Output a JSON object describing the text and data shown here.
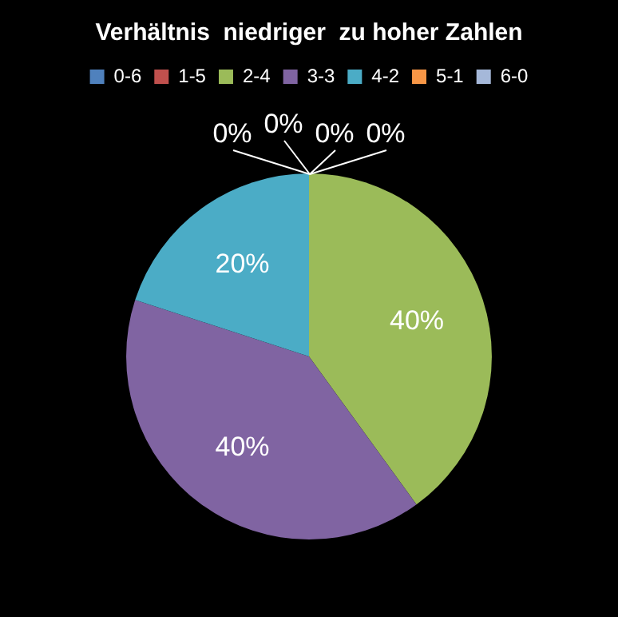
{
  "chart_data": {
    "type": "pie",
    "title": "Verhältnis  niedriger  zu hoher Zahlen",
    "categories": [
      "0-6",
      "1-5",
      "2-4",
      "3-3",
      "4-2",
      "5-1",
      "6-0"
    ],
    "values": [
      0,
      0,
      40,
      40,
      20,
      0,
      0
    ],
    "colors": [
      "#4f81bd",
      "#c0504d",
      "#9bbb59",
      "#8064a2",
      "#4bacc6",
      "#f79646",
      "#a5b8d9"
    ],
    "value_labels": [
      "0%",
      "0%",
      "40%",
      "40%",
      "20%",
      "0%",
      "0%"
    ],
    "legend": "top"
  }
}
